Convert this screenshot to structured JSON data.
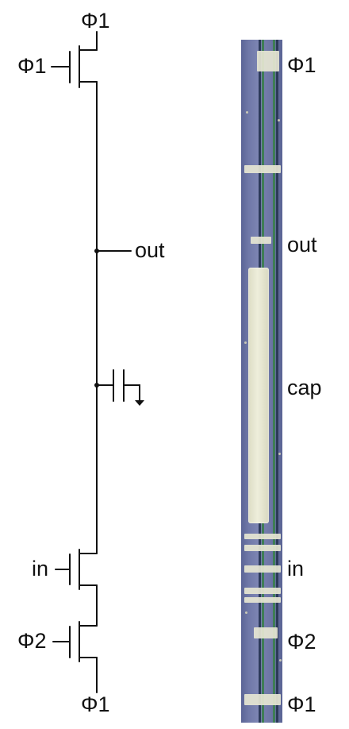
{
  "schematic": {
    "labels": {
      "top_supply": "Φ1",
      "top_gate": "Φ1",
      "out": "out",
      "in": "in",
      "bottom_gate": "Φ2",
      "bottom_supply": "Φ1"
    }
  },
  "die_photo": {
    "labels": {
      "top": "Φ1",
      "out": "out",
      "cap": "cap",
      "in": "in",
      "phi2": "Φ2",
      "bottom": "Φ1"
    },
    "colors": {
      "substrate": "#6f78a8",
      "metal": "#e6e6d2",
      "trace_green": "#3e7d55",
      "trace_dark": "#2c3a5a"
    }
  }
}
